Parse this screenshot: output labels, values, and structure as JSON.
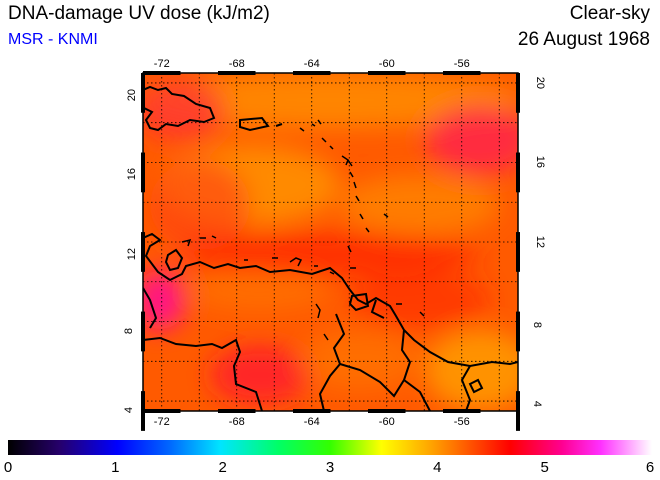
{
  "header": {
    "title": "DNA-damage UV dose (kJ/m2)",
    "source": "MSR - KNMI",
    "sky_condition": "Clear-sky",
    "date": "26 August 1968"
  },
  "colors": {
    "source_text": "#0000ff",
    "map_base": "#ff5a00",
    "frame": "#000000",
    "grid": "#000000"
  },
  "map": {
    "lon_range": [
      -73,
      -53
    ],
    "lat_range": [
      3.5,
      20.5
    ],
    "lon_ticks": [
      "-72",
      "-68",
      "-64",
      "-60",
      "-56"
    ],
    "lat_ticks": [
      "20",
      "16",
      "12",
      "8",
      "4"
    ],
    "gridlines": "dotted, every 2 degrees",
    "scale_min": 0,
    "scale_max": 6
  },
  "colorbar": {
    "labels": [
      "0",
      "1",
      "2",
      "3",
      "4",
      "5",
      "6"
    ]
  }
}
